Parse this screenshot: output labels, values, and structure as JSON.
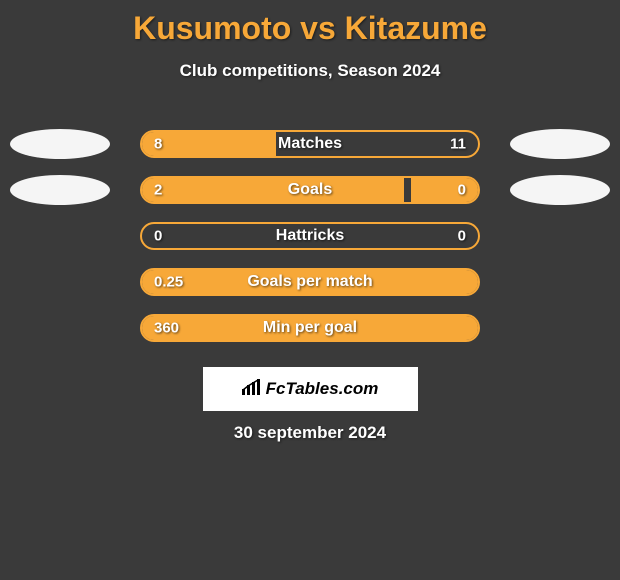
{
  "title": "Kusumoto vs Kitazume",
  "subtitle": "Club competitions, Season 2024",
  "date": "30 september 2024",
  "logo": "FcTables.com",
  "colors": {
    "accent": "#f7a838",
    "background": "#3a3a3a",
    "text": "#ffffff"
  },
  "stats": [
    {
      "label": "Matches",
      "left_value": "8",
      "right_value": "11",
      "left_pct": 40,
      "right_pct": 0,
      "show_avatars": true,
      "full": false
    },
    {
      "label": "Goals",
      "left_value": "2",
      "right_value": "0",
      "left_pct": 78,
      "right_pct": 20,
      "show_avatars": true,
      "full": false
    },
    {
      "label": "Hattricks",
      "left_value": "0",
      "right_value": "0",
      "left_pct": 0,
      "right_pct": 0,
      "show_avatars": false,
      "full": false
    },
    {
      "label": "Goals per match",
      "left_value": "0.25",
      "right_value": "",
      "left_pct": 100,
      "right_pct": 0,
      "show_avatars": false,
      "full": true
    },
    {
      "label": "Min per goal",
      "left_value": "360",
      "right_value": "",
      "left_pct": 100,
      "right_pct": 0,
      "show_avatars": false,
      "full": true
    }
  ]
}
